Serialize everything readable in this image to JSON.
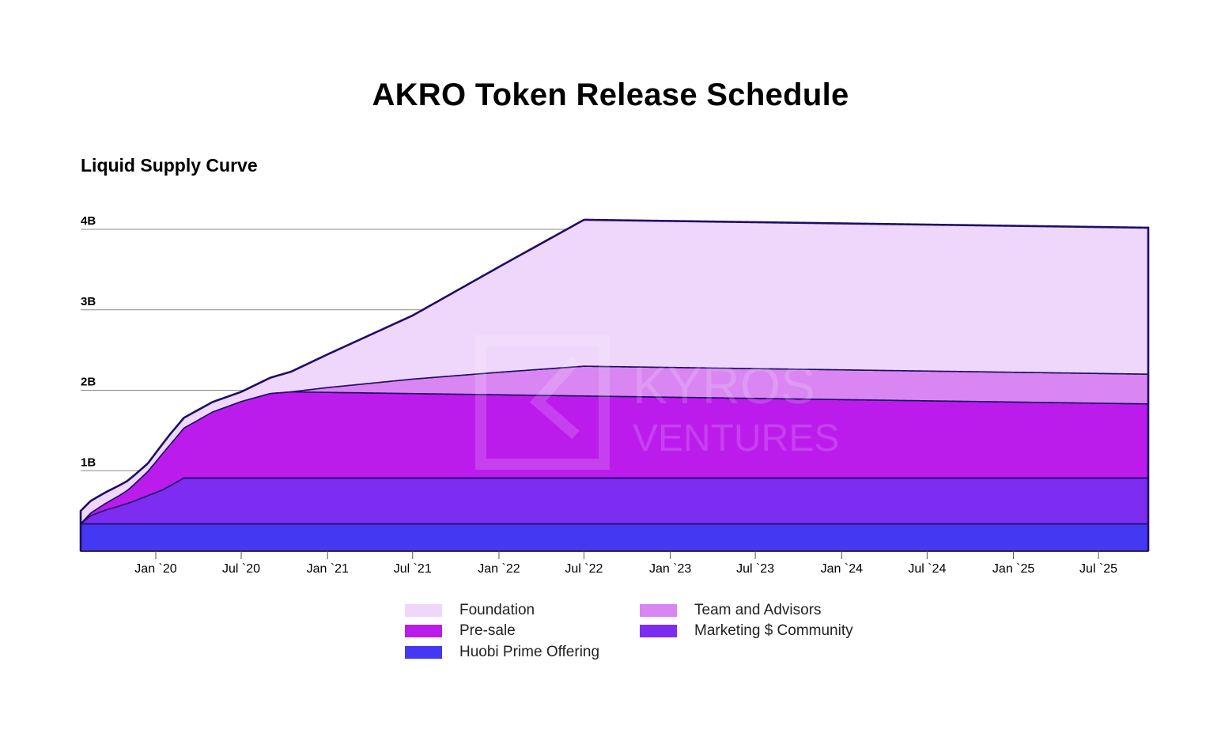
{
  "title": "AKRO Token Release Schedule",
  "subtitle": "Liquid Supply Curve",
  "watermark": {
    "line1": "KYROS",
    "line2": "VENTURES"
  },
  "colors": {
    "foundation": "#efd6fb",
    "team_and_advisors": "#d985f2",
    "pre_sale": "#bb1cec",
    "marketing_community": "#7d2cf2",
    "huobi_prime_offering": "#4538f2",
    "outline": "#1d0f63"
  },
  "chart_data": {
    "type": "area",
    "stacked": true,
    "title": "AKRO Token Release Schedule",
    "subtitle": "Liquid Supply Curve",
    "y_unit": "tokens (billions)",
    "ylim": [
      0,
      4.0
    ],
    "y_ticks": [
      {
        "value": 1.0,
        "label": "1B"
      },
      {
        "value": 2.0,
        "label": "2B"
      },
      {
        "value": 3.0,
        "label": "3B"
      },
      {
        "value": 4.0,
        "label": "4B"
      }
    ],
    "xlim": [
      "2019-07-25",
      "2025-10-15"
    ],
    "x_ticks": [
      {
        "date": "2020-01-01",
        "label": "Jan `20"
      },
      {
        "date": "2020-07-01",
        "label": "Jul `20"
      },
      {
        "date": "2021-01-01",
        "label": "Jan `21"
      },
      {
        "date": "2021-07-01",
        "label": "Jul `21"
      },
      {
        "date": "2022-01-01",
        "label": "Jan `22"
      },
      {
        "date": "2022-07-01",
        "label": "Jul `22"
      },
      {
        "date": "2023-01-01",
        "label": "Jan `23"
      },
      {
        "date": "2023-07-01",
        "label": "Jul `23"
      },
      {
        "date": "2024-01-01",
        "label": "Jan `24"
      },
      {
        "date": "2024-07-01",
        "label": "Jul `24"
      },
      {
        "date": "2025-01-01",
        "label": "Jan `25"
      },
      {
        "date": "2025-07-01",
        "label": "Jul `25"
      }
    ],
    "grid": "horizontal",
    "legend_position": "bottom",
    "series": [
      {
        "name": "Huobi Prime Offering",
        "color": "#4538f2",
        "points": [
          [
            "2019-07-25",
            0.34
          ],
          [
            "2025-10-15",
            0.34
          ]
        ]
      },
      {
        "name": "Marketing $ Community",
        "color": "#7d2cf2",
        "points": [
          [
            "2019-07-25",
            0.0
          ],
          [
            "2019-08-15",
            0.1
          ],
          [
            "2019-09-15",
            0.17
          ],
          [
            "2019-10-15",
            0.22
          ],
          [
            "2019-11-15",
            0.28
          ],
          [
            "2019-12-15",
            0.35
          ],
          [
            "2020-01-15",
            0.42
          ],
          [
            "2020-02-15",
            0.52
          ],
          [
            "2020-03-01",
            0.57
          ],
          [
            "2025-10-15",
            0.57
          ]
        ]
      },
      {
        "name": "Pre-sale",
        "color": "#bb1cec",
        "points": [
          [
            "2019-07-25",
            0.0
          ],
          [
            "2019-09-15",
            0.08
          ],
          [
            "2019-11-01",
            0.16
          ],
          [
            "2019-12-15",
            0.3
          ],
          [
            "2020-01-15",
            0.45
          ],
          [
            "2020-03-01",
            0.62
          ],
          [
            "2020-05-01",
            0.82
          ],
          [
            "2020-07-01",
            0.95
          ],
          [
            "2020-09-01",
            1.05
          ],
          [
            "2020-10-15",
            1.07
          ],
          [
            "2025-10-15",
            0.92
          ]
        ]
      },
      {
        "name": "Team and Advisors",
        "color": "#d985f2",
        "points": [
          [
            "2019-07-25",
            0.0
          ],
          [
            "2020-10-15",
            0.0
          ],
          [
            "2021-01-01",
            0.06
          ],
          [
            "2021-07-01",
            0.18
          ],
          [
            "2022-01-01",
            0.28
          ],
          [
            "2022-07-01",
            0.37
          ],
          [
            "2025-10-15",
            0.37
          ]
        ]
      },
      {
        "name": "Foundation",
        "color": "#efd6fb",
        "points": [
          [
            "2019-07-25",
            0.16
          ],
          [
            "2019-12-15",
            0.1
          ],
          [
            "2020-02-01",
            0.13
          ],
          [
            "2020-07-01",
            0.12
          ],
          [
            "2020-10-15",
            0.25
          ],
          [
            "2021-07-01",
            0.79
          ],
          [
            "2022-07-01",
            1.82
          ],
          [
            "2025-10-15",
            1.82
          ]
        ]
      }
    ],
    "total_max": 3.98
  },
  "legend": [
    {
      "label": "Foundation",
      "color": "#efd6fb"
    },
    {
      "label": "Team and Advisors",
      "color": "#d985f2"
    },
    {
      "label": "Pre-sale",
      "color": "#bb1cec"
    },
    {
      "label": "Marketing $ Community",
      "color": "#7d2cf2"
    },
    {
      "label": "Huobi Prime Offering",
      "color": "#4538f2"
    }
  ]
}
